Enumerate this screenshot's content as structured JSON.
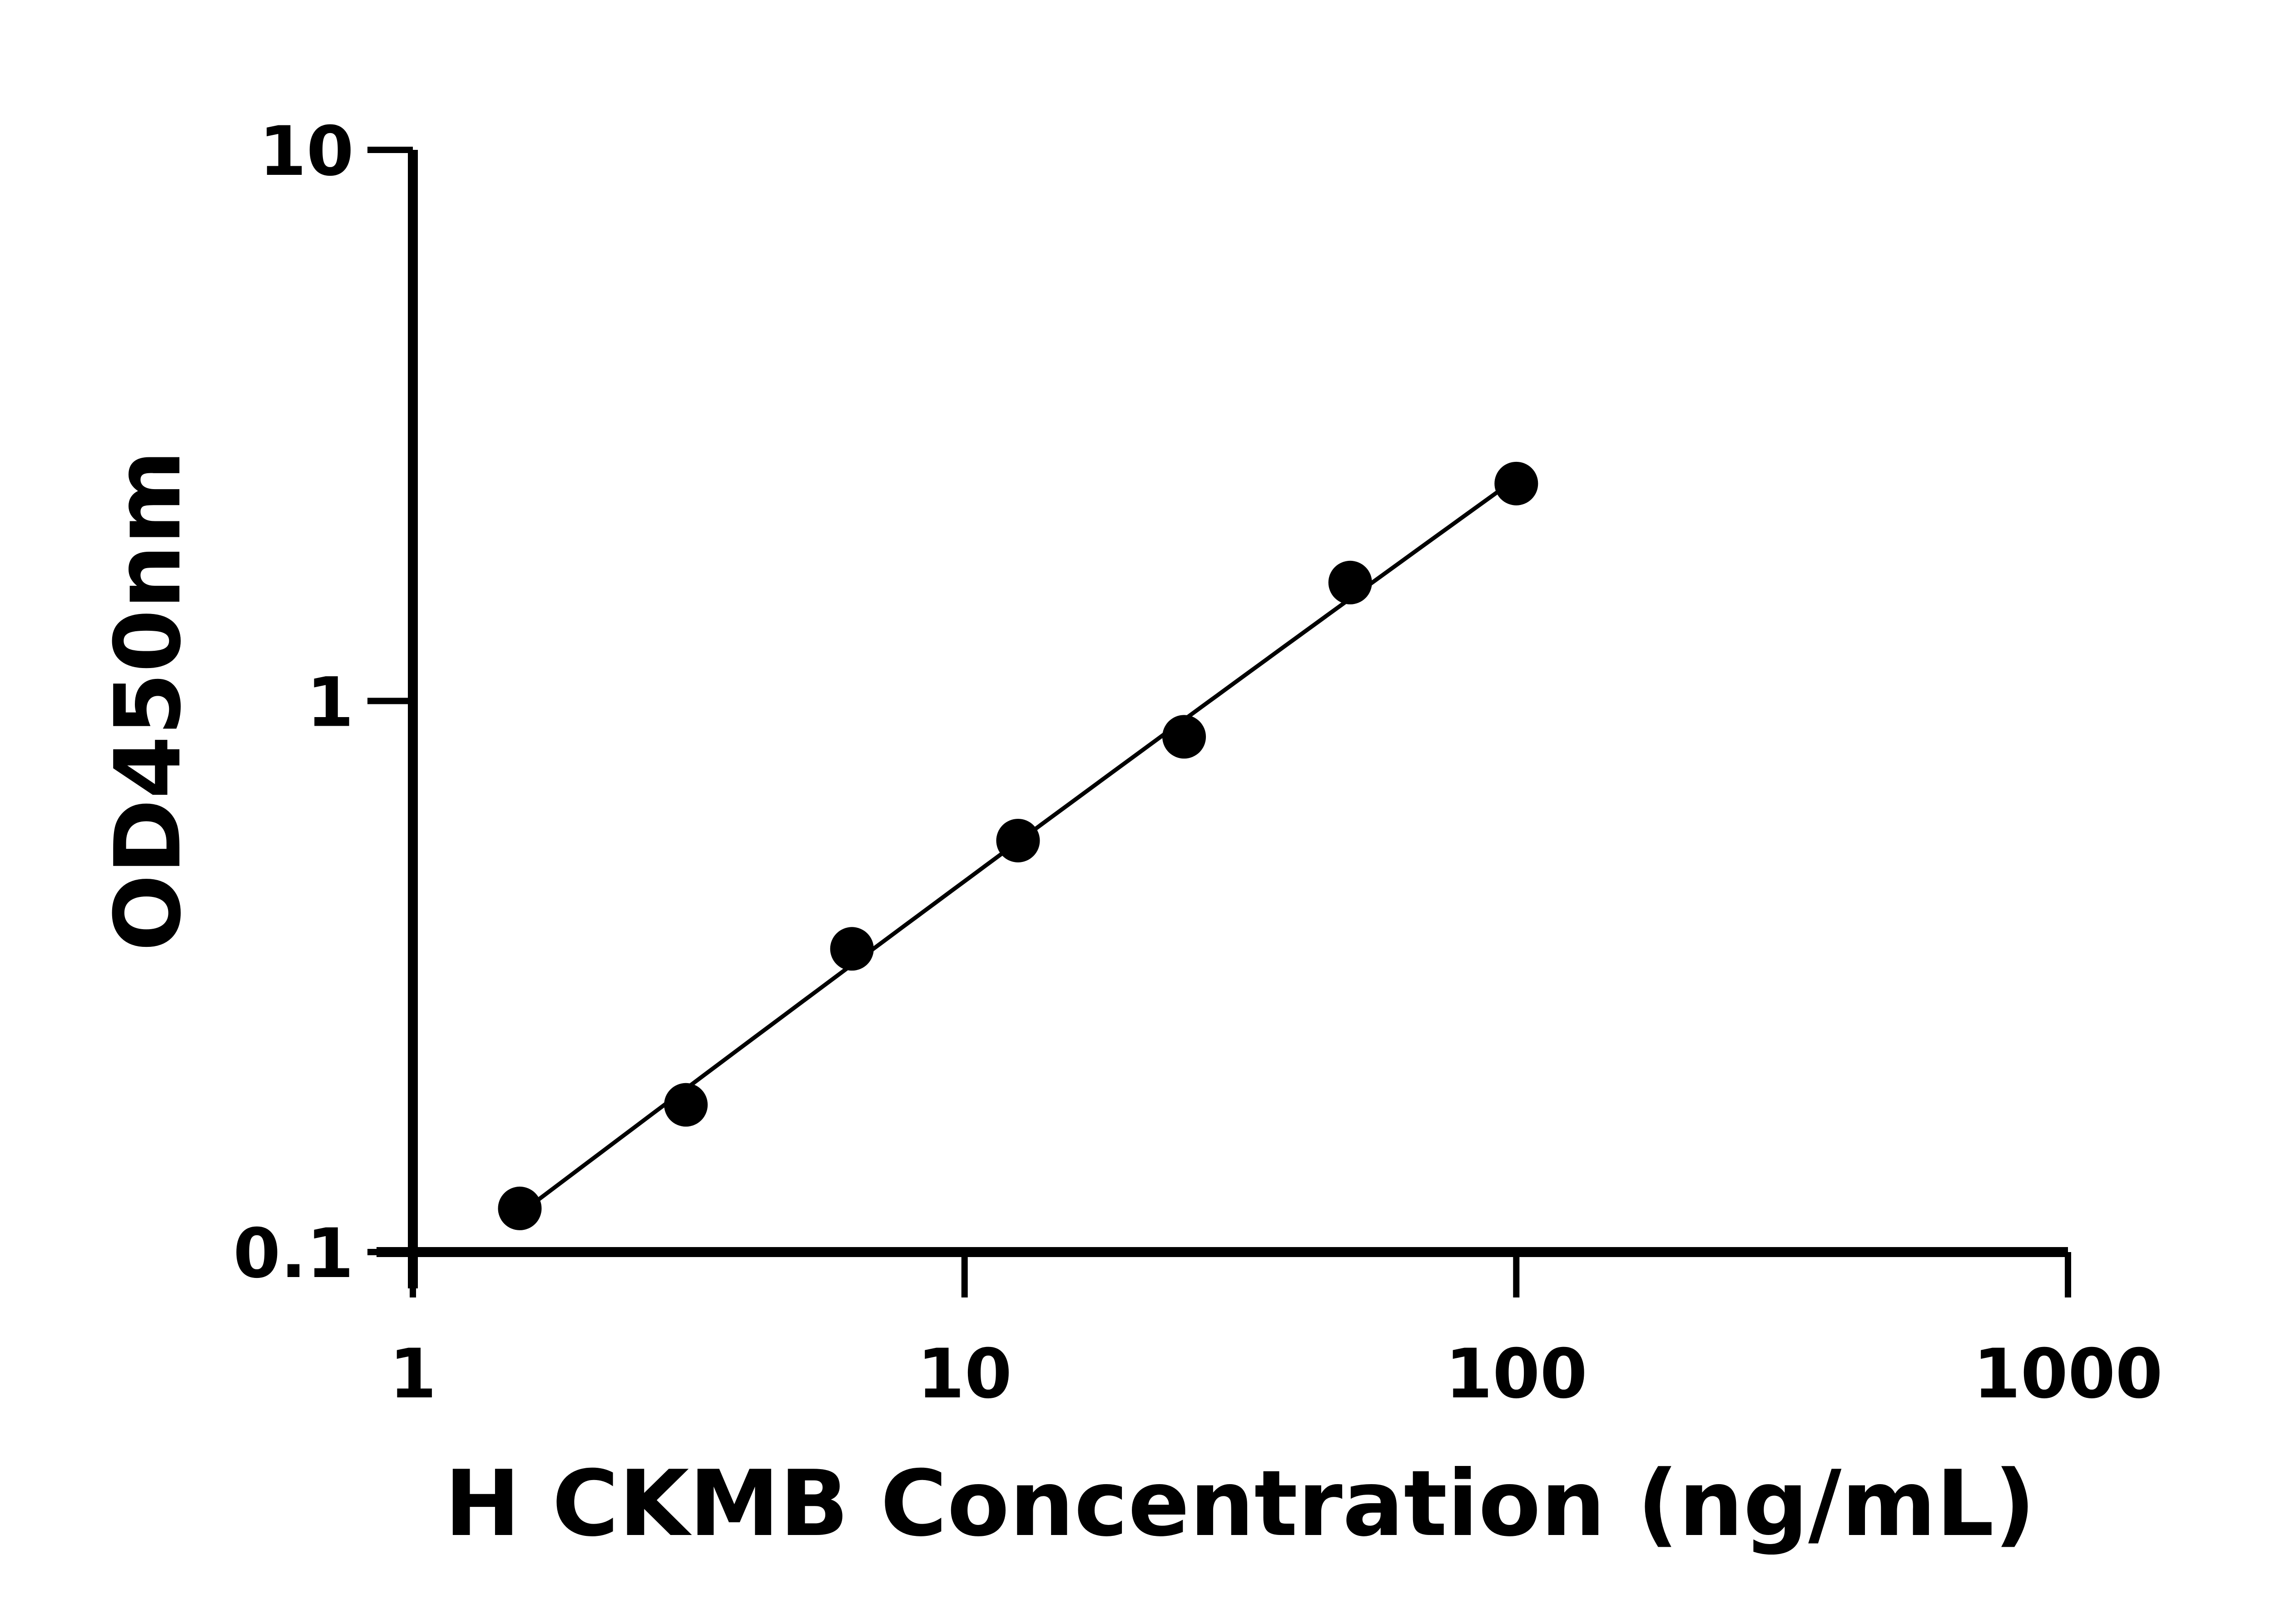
{
  "chart_data": {
    "type": "scatter",
    "title": "",
    "xlabel": "H CKMB Concentration (ng/mL)",
    "ylabel": "OD450nm",
    "x_scale": "log",
    "y_scale": "log",
    "xlim": [
      1,
      1000
    ],
    "ylim": [
      0.1,
      10
    ],
    "x_ticks": [
      "1",
      "10",
      "100",
      "1000"
    ],
    "y_ticks": [
      "0.1",
      "1",
      "10"
    ],
    "grid": false,
    "legend": "none",
    "series": [
      {
        "x": [
          1.5625,
          3.125,
          6.25,
          12.5,
          25,
          50,
          100
        ],
        "y": [
          0.12,
          0.185,
          0.355,
          0.558,
          0.861,
          1.64,
          2.48
        ],
        "marker": "filled-circle",
        "fit_line": true,
        "color": "#000000"
      }
    ]
  }
}
